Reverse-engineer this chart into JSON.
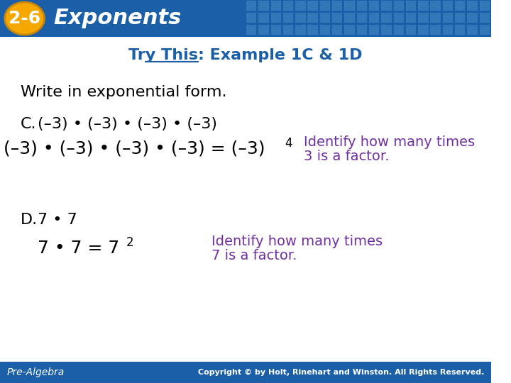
{
  "title_badge": "2-6",
  "title_text": "Exponents",
  "subtitle": "Try This: Example 1C & 1D",
  "subtitle_underline": "Try This:",
  "header_bg_color": "#1a5fa8",
  "header_text_color": "#ffffff",
  "badge_bg_color": "#f5a800",
  "badge_text_color": "#ffffff",
  "body_bg_color": "#ffffff",
  "footer_bg_color": "#1a5fa8",
  "footer_left": "Pre-Algebra",
  "footer_right": "Copyright © by Holt, Rinehart and Winston. All Rights Reserved.",
  "footer_text_color": "#ffffff",
  "subtitle_color": "#1a5fa8",
  "write_in_exp": "Write in exponential form.",
  "write_in_exp_color": "#000000",
  "c_label": "C.",
  "c_expression": "(–3) • (–3) • (–3) • (–3)",
  "c_equation": "(–3) • (–3) • (–3) • (–3) = (–3)",
  "c_exp": "4",
  "c_annotation_line1": "Identify how many times",
  "c_annotation_line2": "3 is a factor.",
  "c_annotation_color": "#7030a0",
  "d_label": "D.",
  "d_expression": "7 • 7",
  "d_equation": "7 • 7 = 7",
  "d_exp": "2",
  "d_annotation_line1": "Identify how many times",
  "d_annotation_line2": "7 is a factor.",
  "d_annotation_color": "#7030a0",
  "main_text_color": "#000000",
  "header_grid_color": "#4a90c8",
  "fig_width": 7.2,
  "fig_height": 5.4,
  "dpi": 100
}
